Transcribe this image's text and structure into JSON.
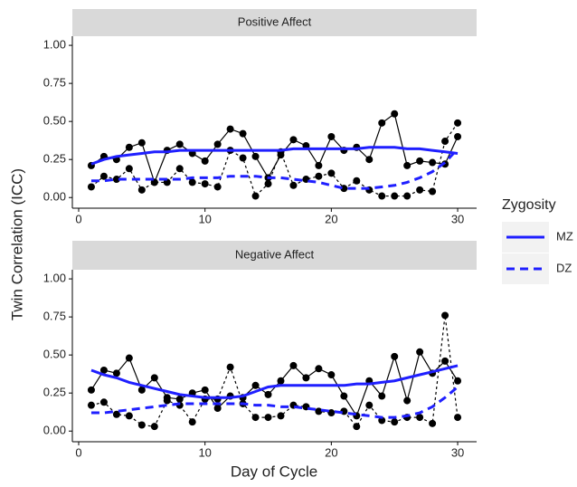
{
  "ylabel": "Twin Correlation (ICC)",
  "xlabel": "Day of Cycle",
  "legend": {
    "title": "Zygosity"
  },
  "chart_data": [
    {
      "type": "line",
      "title": "Positive Affect",
      "x": [
        1,
        2,
        3,
        4,
        5,
        6,
        7,
        8,
        9,
        10,
        11,
        12,
        13,
        14,
        15,
        16,
        17,
        18,
        19,
        20,
        21,
        22,
        23,
        24,
        25,
        26,
        27,
        28,
        29,
        30
      ],
      "xlim": [
        -0.5,
        31.5
      ],
      "ylim": [
        -0.07,
        1.06
      ],
      "xticks": [
        0,
        10,
        20,
        30
      ],
      "yticks": [
        {
          "value": 0,
          "label": "0.00"
        },
        0.25,
        {
          "value": 0.5,
          "label": "0.50"
        },
        0.75,
        {
          "value": 1,
          "label": "1.00"
        }
      ],
      "series": [
        {
          "color": "#000000",
          "linestyle": "solid",
          "markers": true,
          "values": [
            0.21,
            0.27,
            0.25,
            0.33,
            0.36,
            0.1,
            0.31,
            0.35,
            0.29,
            0.24,
            0.35,
            0.45,
            0.42,
            0.27,
            0.13,
            0.28,
            0.38,
            0.34,
            0.21,
            0.4,
            0.31,
            0.33,
            0.25,
            0.49,
            0.55,
            0.21,
            0.24,
            0.23,
            0.22,
            0.4
          ]
        },
        {
          "color": "#000000",
          "linestyle": "dashed",
          "markers": true,
          "values": [
            0.07,
            0.14,
            0.12,
            0.19,
            0.05,
            0.1,
            0.1,
            0.19,
            0.1,
            0.09,
            0.07,
            0.31,
            0.26,
            0.01,
            0.09,
            0.3,
            0.08,
            0.12,
            0.14,
            0.16,
            0.06,
            0.11,
            0.05,
            0.01,
            0.01,
            0.01,
            0.05,
            0.04,
            0.37,
            0.49
          ]
        },
        {
          "name": "MZ",
          "color": "#1f1fff",
          "linestyle": "solid",
          "markers": false,
          "values": [
            0.22,
            0.25,
            0.27,
            0.28,
            0.29,
            0.3,
            0.3,
            0.31,
            0.31,
            0.31,
            0.31,
            0.31,
            0.31,
            0.31,
            0.31,
            0.31,
            0.32,
            0.32,
            0.32,
            0.32,
            0.32,
            0.32,
            0.33,
            0.33,
            0.33,
            0.32,
            0.32,
            0.31,
            0.3,
            0.29
          ]
        },
        {
          "name": "DZ",
          "color": "#1f1fff",
          "linestyle": "dashed",
          "markers": false,
          "values": [
            0.11,
            0.11,
            0.12,
            0.12,
            0.12,
            0.12,
            0.12,
            0.12,
            0.13,
            0.13,
            0.13,
            0.14,
            0.14,
            0.14,
            0.13,
            0.13,
            0.12,
            0.11,
            0.1,
            0.08,
            0.06,
            0.06,
            0.06,
            0.07,
            0.08,
            0.1,
            0.13,
            0.17,
            0.23,
            0.32
          ]
        }
      ]
    },
    {
      "type": "line",
      "title": "Negative Affect",
      "x": [
        1,
        2,
        3,
        4,
        5,
        6,
        7,
        8,
        9,
        10,
        11,
        12,
        13,
        14,
        15,
        16,
        17,
        18,
        19,
        20,
        21,
        22,
        23,
        24,
        25,
        26,
        27,
        28,
        29,
        30
      ],
      "xlim": [
        -0.5,
        31.5
      ],
      "ylim": [
        -0.07,
        1.06
      ],
      "xticks": [
        0,
        10,
        20,
        30
      ],
      "yticks": [
        {
          "value": 0,
          "label": "0.00"
        },
        0.25,
        {
          "value": 0.5,
          "label": "0.50"
        },
        0.75,
        {
          "value": 1,
          "label": "1.00"
        }
      ],
      "series": [
        {
          "color": "#000000",
          "linestyle": "solid",
          "markers": true,
          "values": [
            0.27,
            0.4,
            0.38,
            0.48,
            0.27,
            0.35,
            0.22,
            0.21,
            0.25,
            0.27,
            0.15,
            0.23,
            0.22,
            0.3,
            0.24,
            0.33,
            0.43,
            0.35,
            0.41,
            0.37,
            0.23,
            0.1,
            0.33,
            0.23,
            0.49,
            0.2,
            0.52,
            0.38,
            0.46,
            0.33
          ]
        },
        {
          "color": "#000000",
          "linestyle": "dashed",
          "markers": true,
          "values": [
            0.17,
            0.19,
            0.11,
            0.1,
            0.04,
            0.03,
            0.2,
            0.17,
            0.06,
            0.21,
            0.21,
            0.42,
            0.18,
            0.09,
            0.09,
            0.1,
            0.17,
            0.16,
            0.13,
            0.12,
            0.13,
            0.03,
            0.17,
            0.07,
            0.06,
            0.09,
            0.09,
            0.05,
            0.76,
            0.09
          ]
        },
        {
          "color": "#1f1fff",
          "linestyle": "solid",
          "markers": false,
          "values": [
            0.4,
            0.37,
            0.35,
            0.32,
            0.3,
            0.28,
            0.26,
            0.24,
            0.23,
            0.22,
            0.22,
            0.22,
            0.23,
            0.26,
            0.29,
            0.3,
            0.3,
            0.3,
            0.3,
            0.3,
            0.3,
            0.31,
            0.31,
            0.32,
            0.33,
            0.35,
            0.37,
            0.39,
            0.41,
            0.43
          ]
        },
        {
          "color": "#1f1fff",
          "linestyle": "dashed",
          "markers": false,
          "values": [
            0.12,
            0.12,
            0.13,
            0.14,
            0.15,
            0.16,
            0.17,
            0.18,
            0.18,
            0.18,
            0.18,
            0.18,
            0.18,
            0.17,
            0.17,
            0.16,
            0.16,
            0.15,
            0.14,
            0.13,
            0.12,
            0.11,
            0.1,
            0.09,
            0.09,
            0.1,
            0.12,
            0.16,
            0.22,
            0.29
          ]
        }
      ]
    }
  ]
}
